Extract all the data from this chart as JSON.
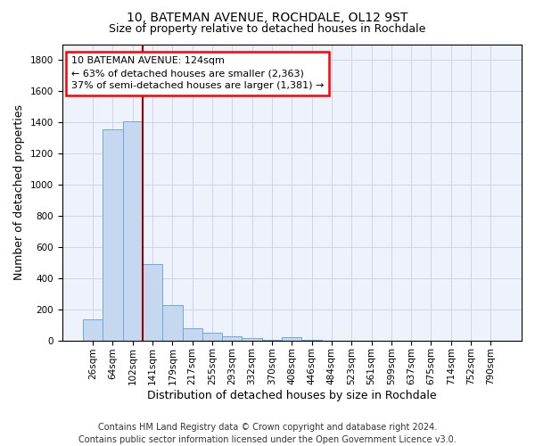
{
  "title": "10, BATEMAN AVENUE, ROCHDALE, OL12 9ST",
  "subtitle": "Size of property relative to detached houses in Rochdale",
  "xlabel": "Distribution of detached houses by size in Rochdale",
  "ylabel": "Number of detached properties",
  "bar_labels": [
    "26sqm",
    "64sqm",
    "102sqm",
    "141sqm",
    "179sqm",
    "217sqm",
    "255sqm",
    "293sqm",
    "332sqm",
    "370sqm",
    "408sqm",
    "446sqm",
    "484sqm",
    "523sqm",
    "561sqm",
    "599sqm",
    "637sqm",
    "675sqm",
    "714sqm",
    "752sqm",
    "790sqm"
  ],
  "bar_values": [
    135,
    1355,
    1410,
    490,
    225,
    80,
    48,
    25,
    15,
    5,
    20,
    5,
    0,
    0,
    0,
    0,
    0,
    0,
    0,
    0,
    0
  ],
  "bar_color": "#c5d8f0",
  "bar_edge_color": "#6fa8d8",
  "annotation_text": "10 BATEMAN AVENUE: 124sqm\n← 63% of detached houses are smaller (2,363)\n37% of semi-detached houses are larger (1,381) →",
  "vline_x": 3.0,
  "vline_color": "#990000",
  "ylim": [
    0,
    1900
  ],
  "yticks": [
    0,
    200,
    400,
    600,
    800,
    1000,
    1200,
    1400,
    1600,
    1800
  ],
  "grid_color": "#c8d0e0",
  "bg_color": "#eef2fb",
  "footer": "Contains HM Land Registry data © Crown copyright and database right 2024.\nContains public sector information licensed under the Open Government Licence v3.0.",
  "title_fontsize": 10,
  "subtitle_fontsize": 9,
  "annotation_fontsize": 8,
  "axis_label_fontsize": 9,
  "tick_fontsize": 7.5,
  "ylabel_fontsize": 9,
  "footer_fontsize": 7
}
